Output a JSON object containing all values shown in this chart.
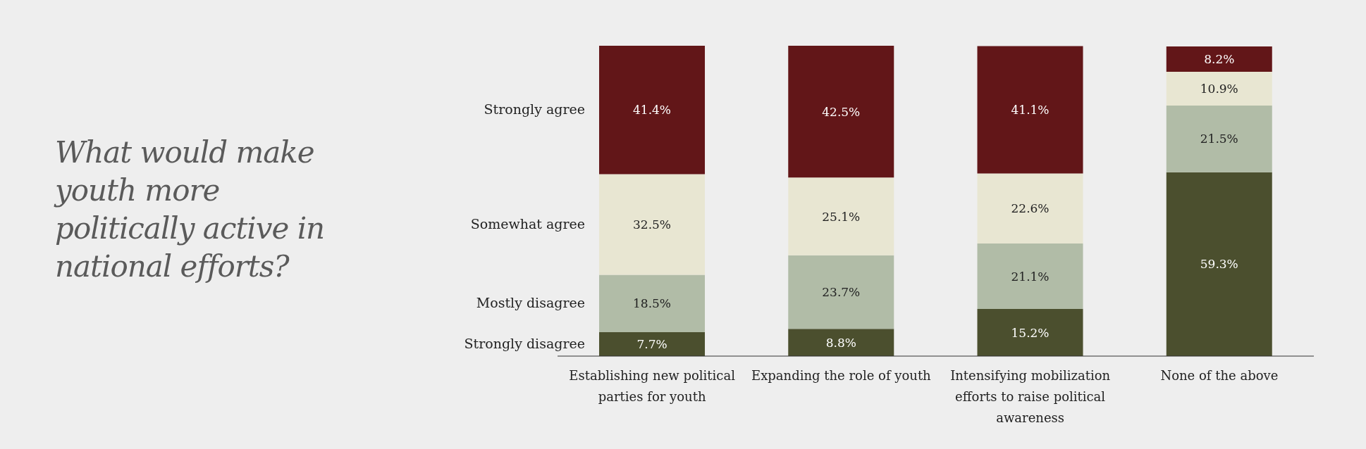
{
  "chart_data": {
    "type": "bar",
    "title": "What would make youth more politically active in national efforts?",
    "categories": [
      "Establishing new political parties for youth",
      "Expanding the role of youth",
      "Intensifying mobilization efforts to raise political awareness",
      "None of the above"
    ],
    "stacked": true,
    "ylim": [
      0,
      100.1
    ],
    "tick_labels": "x",
    "series": [
      {
        "name": "Strongly disagree",
        "color": "#4b4f2e",
        "values": [
          7.7,
          8.8,
          15.2,
          59.3
        ],
        "value_labels": [
          "7.7%",
          "8.8%",
          "15.2%",
          "59.3%"
        ]
      },
      {
        "name": "Mostly disagree",
        "color": "#b1bca7",
        "values": [
          18.5,
          23.7,
          21.1,
          21.5
        ],
        "value_labels": [
          "18.5%",
          "23.7%",
          "21.1%",
          "21.5%"
        ]
      },
      {
        "name": "Somewhat agree",
        "color": "#e8e6d2",
        "values": [
          32.5,
          25.1,
          22.6,
          10.9
        ],
        "value_labels": [
          "32.5%",
          "25.1%",
          "22.6%",
          "10.9%"
        ]
      },
      {
        "name": "Strongly agree",
        "color": "#621618",
        "values": [
          41.4,
          42.5,
          41.1,
          8.2
        ],
        "value_labels": [
          "41.4%",
          "42.5%",
          "41.1%",
          "8.2%"
        ]
      }
    ]
  }
}
